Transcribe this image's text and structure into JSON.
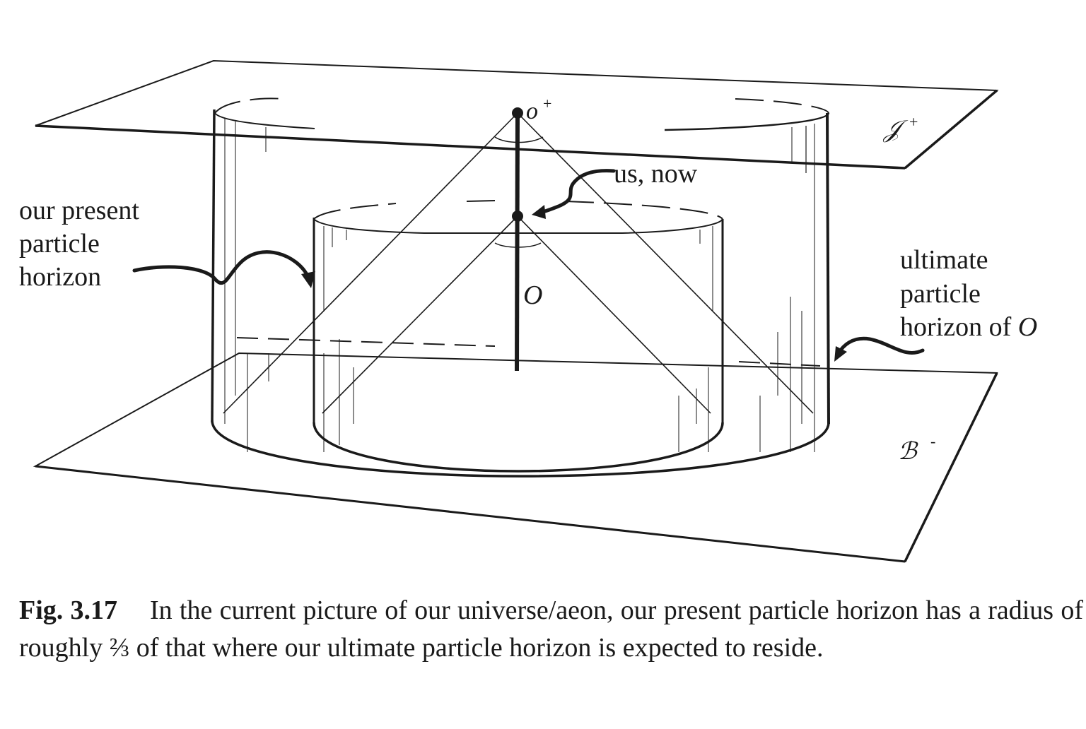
{
  "figure": {
    "labels": {
      "o_plus": "o",
      "o_plus_sup": "+",
      "scri_plus": "𝒥",
      "scri_plus_sup": "+",
      "us_now": "us, now",
      "O": "O",
      "big_bang": "ℬ",
      "big_bang_sup": "-",
      "present_horizon_lines": [
        "our present",
        "particle",
        "horizon"
      ],
      "ultimate_horizon_lines": [
        "ultimate",
        "particle",
        "horizon of "
      ],
      "ultimate_horizon_O": "O"
    }
  },
  "caption": {
    "fig_label": "Fig. 3.17",
    "text": "In the current picture of our universe/aeon, our present particle horizon has a radius of roughly ⅔ of that where our ultimate particle horizon is expected to reside."
  }
}
